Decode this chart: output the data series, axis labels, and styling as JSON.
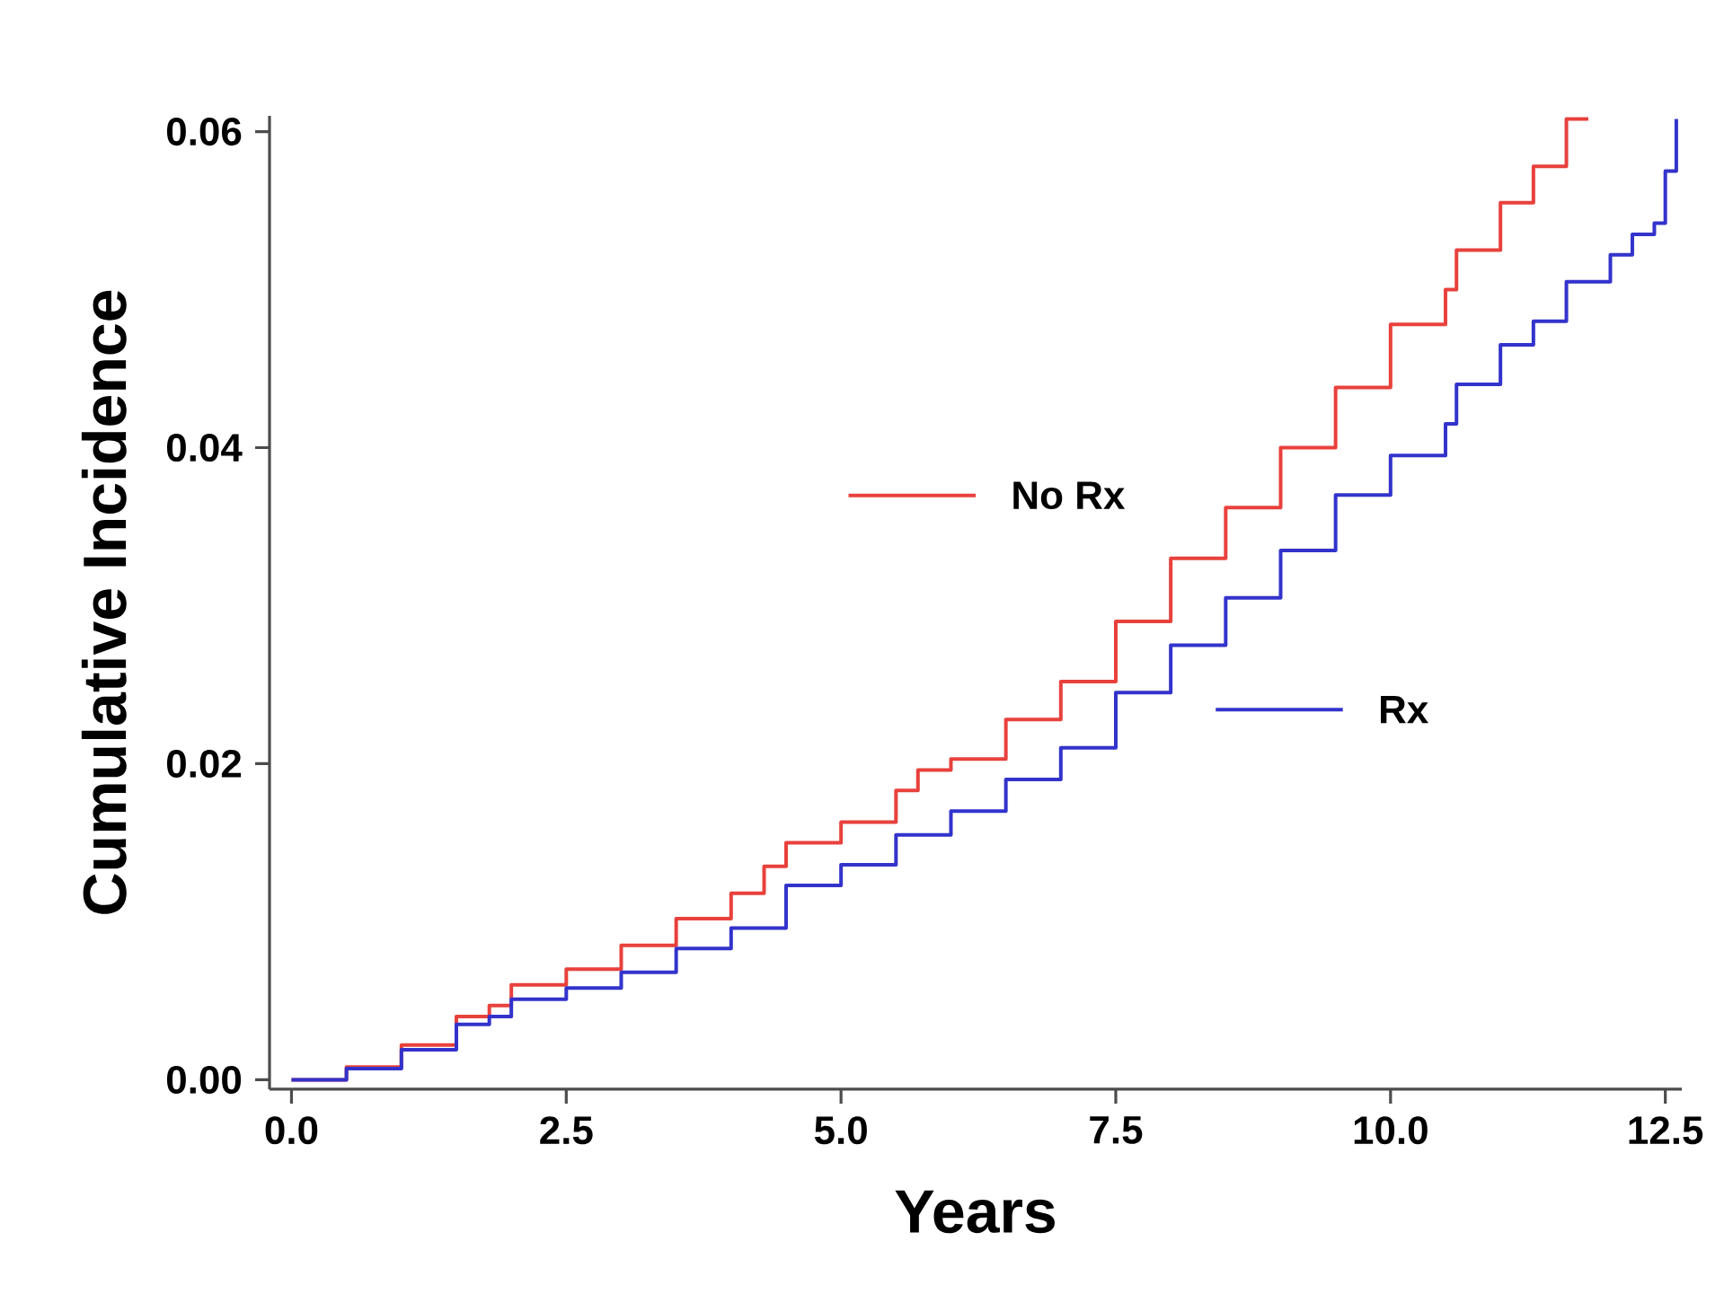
{
  "chart_data": {
    "type": "step",
    "xlabel": "Years",
    "ylabel": "Cumulative Incidence",
    "xlim": [
      -0.2,
      12.65
    ],
    "ylim": [
      -0.0006,
      0.061
    ],
    "xticks": [
      {
        "value": 0,
        "label": "0.0"
      },
      {
        "value": 2.5,
        "label": "2.5"
      },
      {
        "value": 5,
        "label": "5.0"
      },
      {
        "value": 7.5,
        "label": "7.5"
      },
      {
        "value": 10,
        "label": "10.0"
      },
      {
        "value": 12.5,
        "label": "12.5"
      }
    ],
    "yticks": [
      {
        "value": 0,
        "label": "0.00"
      },
      {
        "value": 0.02,
        "label": "0.02"
      },
      {
        "value": 0.04,
        "label": "0.04"
      },
      {
        "value": 0.06,
        "label": "0.06"
      }
    ],
    "grid": false,
    "legend": "center",
    "marker": "none",
    "line_style": "solid",
    "series": [
      {
        "name": "No Rx",
        "color": "#e8413c",
        "x": [
          0,
          0.5,
          1.0,
          1.5,
          1.8,
          2.0,
          2.5,
          3.0,
          3.5,
          4.0,
          4.3,
          4.5,
          5.0,
          5.5,
          5.7,
          6.0,
          6.5,
          7.0,
          7.5,
          8.0,
          8.5,
          9.0,
          9.5,
          10.0,
          10.5,
          10.6,
          11.0,
          11.3,
          11.6,
          11.8
        ],
        "values": [
          0,
          0.0008,
          0.0022,
          0.004,
          0.0047,
          0.006,
          0.007,
          0.0085,
          0.0102,
          0.0118,
          0.0135,
          0.015,
          0.0163,
          0.0183,
          0.0196,
          0.0203,
          0.0228,
          0.0252,
          0.029,
          0.033,
          0.0362,
          0.04,
          0.0438,
          0.0478,
          0.05,
          0.0525,
          0.0555,
          0.0578,
          0.0608,
          0.0608
        ]
      },
      {
        "name": "Rx",
        "color": "#3333cc",
        "x": [
          0,
          0.5,
          1.0,
          1.5,
          1.8,
          2.0,
          2.5,
          3.0,
          3.5,
          4.0,
          4.5,
          5.0,
          5.5,
          6.0,
          6.5,
          7.0,
          7.5,
          8.0,
          8.5,
          9.0,
          9.5,
          10.0,
          10.5,
          10.6,
          11.0,
          11.3,
          11.6,
          12.0,
          12.2,
          12.4,
          12.5,
          12.6
        ],
        "values": [
          0,
          0.0007,
          0.0019,
          0.0035,
          0.004,
          0.0051,
          0.0058,
          0.0068,
          0.0083,
          0.0096,
          0.0123,
          0.0136,
          0.0155,
          0.017,
          0.019,
          0.021,
          0.0245,
          0.0275,
          0.0305,
          0.0335,
          0.037,
          0.0395,
          0.0415,
          0.044,
          0.0465,
          0.048,
          0.0505,
          0.0522,
          0.0535,
          0.0542,
          0.0575,
          0.0608
        ]
      }
    ]
  }
}
